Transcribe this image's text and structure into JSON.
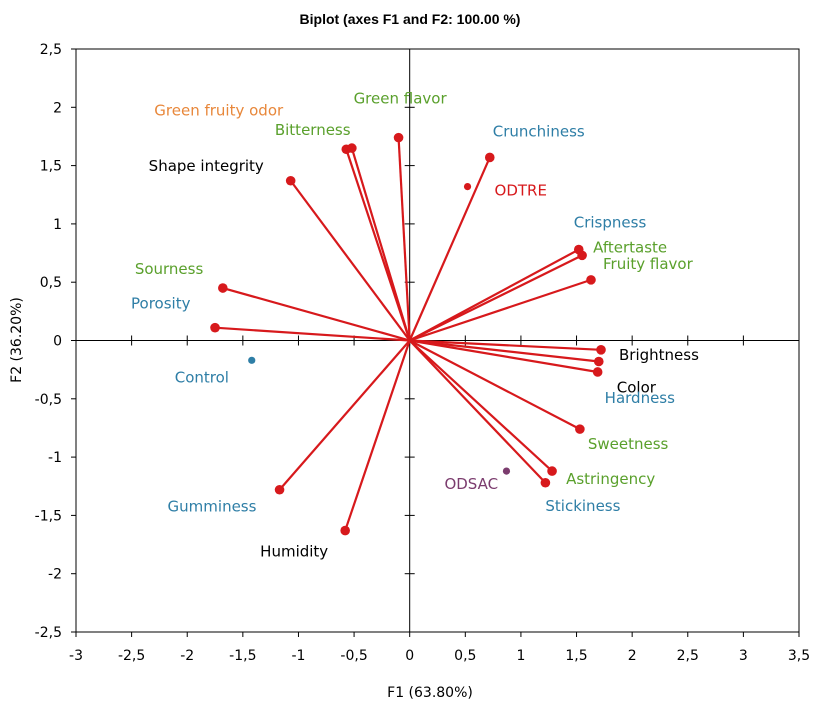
{
  "chart_data": {
    "type": "scatter",
    "title": "Biplot (axes F1 and F2: 100.00 %)",
    "xlabel": "F1 (63.80%)",
    "ylabel": "F2 (36.20%)",
    "xlim": [
      -3,
      3.5
    ],
    "ylim": [
      -2.5,
      2.5
    ],
    "x_ticks": [
      "-3",
      "-2,5",
      "-2",
      "-1,5",
      "-1",
      "-0,5",
      "0",
      "0,5",
      "1",
      "1,5",
      "2",
      "2,5",
      "3",
      "3,5"
    ],
    "y_ticks": [
      "2,5",
      "2",
      "1,5",
      "1",
      "0,5",
      "0",
      "-0,5",
      "-1",
      "-1,5",
      "-2",
      "-2,5"
    ],
    "colors": {
      "vector": "#d7191c",
      "blue": "#2e7ea6",
      "green": "#5aa02c",
      "orange": "#e8873a",
      "red": "#d7191c",
      "black": "#000000",
      "purple": "#7b3c6e"
    },
    "variables": [
      {
        "name": "Green fruity odor",
        "x": -0.57,
        "y": 1.64,
        "color": "orange"
      },
      {
        "name": "Green flavor",
        "x": -0.1,
        "y": 1.74,
        "color": "green"
      },
      {
        "name": "Bitterness",
        "x": -0.52,
        "y": 1.65,
        "color": "green"
      },
      {
        "name": "Crunchiness",
        "x": 0.72,
        "y": 1.57,
        "color": "blue"
      },
      {
        "name": "Shape integrity",
        "x": -1.07,
        "y": 1.37,
        "color": "black"
      },
      {
        "name": "Crispness",
        "x": 1.52,
        "y": 0.78,
        "color": "blue"
      },
      {
        "name": "Aftertaste",
        "x": 1.55,
        "y": 0.73,
        "color": "green"
      },
      {
        "name": "Fruity flavor",
        "x": 1.63,
        "y": 0.52,
        "color": "green"
      },
      {
        "name": "Sourness",
        "x": -1.68,
        "y": 0.45,
        "color": "green"
      },
      {
        "name": "Porosity",
        "x": -1.75,
        "y": 0.11,
        "color": "blue"
      },
      {
        "name": "Brightness",
        "x": 1.72,
        "y": -0.08,
        "color": "black"
      },
      {
        "name": "Color",
        "x": 1.7,
        "y": -0.18,
        "color": "black"
      },
      {
        "name": "Hardness",
        "x": 1.69,
        "y": -0.27,
        "color": "blue"
      },
      {
        "name": "Sweetness",
        "x": 1.53,
        "y": -0.76,
        "color": "green"
      },
      {
        "name": "Astringency",
        "x": 1.28,
        "y": -1.12,
        "color": "green"
      },
      {
        "name": "Stickiness",
        "x": 1.22,
        "y": -1.22,
        "color": "blue"
      },
      {
        "name": "Gumminess",
        "x": -1.17,
        "y": -1.28,
        "color": "blue"
      },
      {
        "name": "Humidity",
        "x": -0.58,
        "y": -1.63,
        "color": "black"
      }
    ],
    "observations": [
      {
        "name": "ODTRE",
        "x": 0.52,
        "y": 1.32,
        "color": "red"
      },
      {
        "name": "Control",
        "x": -1.42,
        "y": -0.17,
        "color": "blue"
      },
      {
        "name": "ODSAC",
        "x": 0.87,
        "y": -1.12,
        "color": "purple"
      }
    ]
  }
}
